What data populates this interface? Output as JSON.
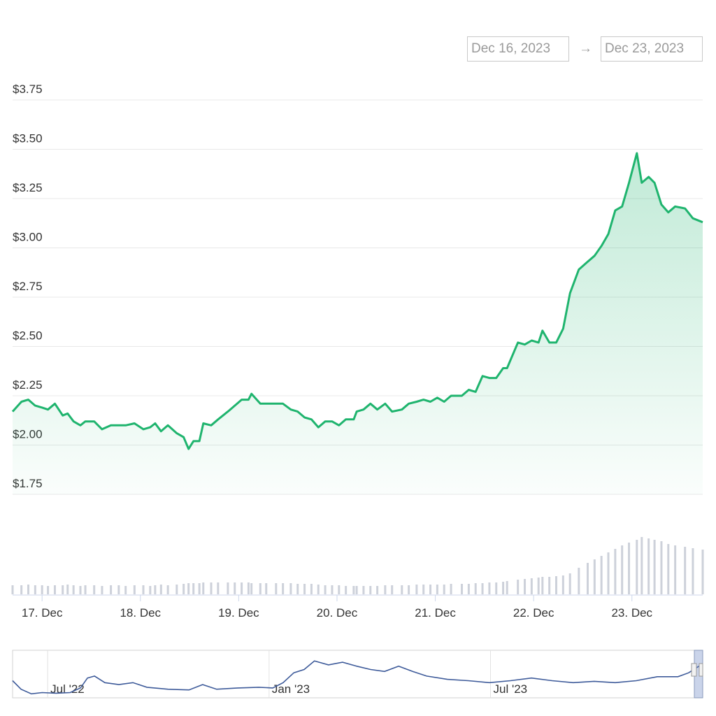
{
  "range_selector": {
    "from": "Dec 16, 2023",
    "separator": "→",
    "to": "Dec 23, 2023"
  },
  "chart_data": {
    "type": "area",
    "color": "#1fb46e",
    "x": [
      16.7,
      16.79,
      16.86,
      16.93,
      17.0,
      17.06,
      17.13,
      17.21,
      17.26,
      17.32,
      17.39,
      17.44,
      17.53,
      17.61,
      17.7,
      17.78,
      17.85,
      17.94,
      18.03,
      18.1,
      18.15,
      18.21,
      18.28,
      18.37,
      18.44,
      18.49,
      18.54,
      18.6,
      18.64,
      18.72,
      18.79,
      18.89,
      18.96,
      19.03,
      19.1,
      19.13,
      19.22,
      19.28,
      19.38,
      19.45,
      19.53,
      19.6,
      19.67,
      19.74,
      19.81,
      19.88,
      19.95,
      20.02,
      20.09,
      20.17,
      20.2,
      20.27,
      20.34,
      20.41,
      20.49,
      20.56,
      20.66,
      20.73,
      20.81,
      20.88,
      20.95,
      21.02,
      21.09,
      21.16,
      21.27,
      21.34,
      21.41,
      21.48,
      21.55,
      21.62,
      21.69,
      21.73,
      21.84,
      21.91,
      21.98,
      22.05,
      22.09,
      22.16,
      22.23,
      22.3,
      22.37,
      22.46,
      22.55,
      22.62,
      22.69,
      22.76,
      22.83,
      22.9,
      22.97,
      23.05,
      23.1,
      23.17,
      23.23,
      23.3,
      23.37,
      23.44,
      23.54,
      23.62,
      23.72
    ],
    "values": [
      2.17,
      2.22,
      2.23,
      2.2,
      2.19,
      2.18,
      2.21,
      2.15,
      2.16,
      2.12,
      2.1,
      2.12,
      2.12,
      2.08,
      2.1,
      2.1,
      2.1,
      2.11,
      2.08,
      2.09,
      2.11,
      2.07,
      2.1,
      2.06,
      2.04,
      1.98,
      2.02,
      2.02,
      2.11,
      2.1,
      2.13,
      2.17,
      2.2,
      2.23,
      2.23,
      2.26,
      2.21,
      2.21,
      2.21,
      2.21,
      2.18,
      2.17,
      2.14,
      2.13,
      2.09,
      2.12,
      2.12,
      2.1,
      2.13,
      2.13,
      2.17,
      2.18,
      2.21,
      2.18,
      2.21,
      2.17,
      2.18,
      2.21,
      2.22,
      2.23,
      2.22,
      2.24,
      2.22,
      2.25,
      2.25,
      2.28,
      2.27,
      2.35,
      2.34,
      2.34,
      2.39,
      2.39,
      2.52,
      2.51,
      2.53,
      2.52,
      2.58,
      2.52,
      2.52,
      2.59,
      2.77,
      2.89,
      2.93,
      2.96,
      3.01,
      3.07,
      3.19,
      3.21,
      3.33,
      3.48,
      3.33,
      3.36,
      3.33,
      3.22,
      3.18,
      3.21,
      3.2,
      3.15,
      3.13
    ],
    "xlim": [
      16.7,
      23.72
    ],
    "xticks": [
      {
        "value": 17,
        "label": "17. Dec"
      },
      {
        "value": 18,
        "label": "18. Dec"
      },
      {
        "value": 19,
        "label": "19. Dec"
      },
      {
        "value": 20,
        "label": "20. Dec"
      },
      {
        "value": 21,
        "label": "21. Dec"
      },
      {
        "value": 22,
        "label": "22. Dec"
      },
      {
        "value": 23,
        "label": "23. Dec"
      }
    ],
    "ylim": [
      1.75,
      3.75
    ],
    "yticks": [
      {
        "value": 1.75,
        "label": "$1.75"
      },
      {
        "value": 2,
        "label": "$2.00"
      },
      {
        "value": 2.25,
        "label": "$2.25"
      },
      {
        "value": 2.5,
        "label": "$2.50"
      },
      {
        "value": 2.75,
        "label": "$2.75"
      },
      {
        "value": 3,
        "label": "$3.00"
      },
      {
        "value": 3.25,
        "label": "$3.25"
      },
      {
        "value": 3.5,
        "label": "$3.50"
      },
      {
        "value": 3.75,
        "label": "$3.75"
      }
    ],
    "grid": true,
    "volume": {
      "color": "#cdd1da",
      "ylim": [
        0,
        100
      ],
      "values": [
        13,
        13,
        14,
        13,
        13,
        12,
        13,
        13,
        14,
        13,
        12,
        13,
        13,
        12,
        13,
        13,
        12,
        13,
        13,
        12,
        13,
        14,
        13,
        14,
        15,
        16,
        16,
        16,
        17,
        17,
        17,
        17,
        17,
        17,
        17,
        16,
        16,
        16,
        16,
        16,
        16,
        15,
        15,
        15,
        14,
        13,
        13,
        13,
        12,
        12,
        12,
        12,
        12,
        12,
        13,
        13,
        13,
        13,
        14,
        14,
        14,
        14,
        14,
        15,
        15,
        15,
        16,
        16,
        17,
        17,
        18,
        19,
        21,
        22,
        23,
        24,
        25,
        25,
        26,
        27,
        30,
        38,
        45,
        50,
        55,
        60,
        65,
        70,
        74,
        78,
        82,
        80,
        78,
        76,
        72,
        70,
        68,
        66,
        64
      ]
    },
    "navigator": {
      "color": "#3e5b9a",
      "xlim": [
        5.05,
        23.75
      ],
      "ylim": [
        0,
        70
      ],
      "xticks": [
        {
          "value": 6,
          "label": "Jul '22"
        },
        {
          "value": 12,
          "label": "Jan '23"
        },
        {
          "value": 18,
          "label": "Jul '23"
        }
      ],
      "x": [
        5.05,
        5.28,
        5.56,
        5.85,
        6.23,
        6.61,
        6.89,
        7.08,
        7.27,
        7.55,
        7.93,
        8.31,
        8.69,
        9.26,
        9.83,
        10.2,
        10.58,
        11.15,
        11.72,
        12.1,
        12.38,
        12.67,
        12.95,
        13.23,
        13.61,
        13.99,
        14.37,
        14.75,
        15.13,
        15.51,
        15.89,
        16.27,
        16.83,
        17.4,
        17.97,
        18.54,
        19.11,
        19.67,
        20.24,
        20.81,
        21.38,
        21.95,
        22.52,
        23.08,
        23.37,
        23.65
      ],
      "values": [
        26,
        13,
        6,
        8,
        7,
        8,
        15,
        30,
        33,
        23,
        20,
        23,
        16,
        13,
        12,
        20,
        13,
        15,
        16,
        15,
        23,
        38,
        43,
        56,
        50,
        54,
        48,
        43,
        40,
        48,
        40,
        33,
        28,
        26,
        23,
        26,
        30,
        26,
        23,
        25,
        23,
        26,
        32,
        32,
        38,
        48
      ]
    }
  }
}
